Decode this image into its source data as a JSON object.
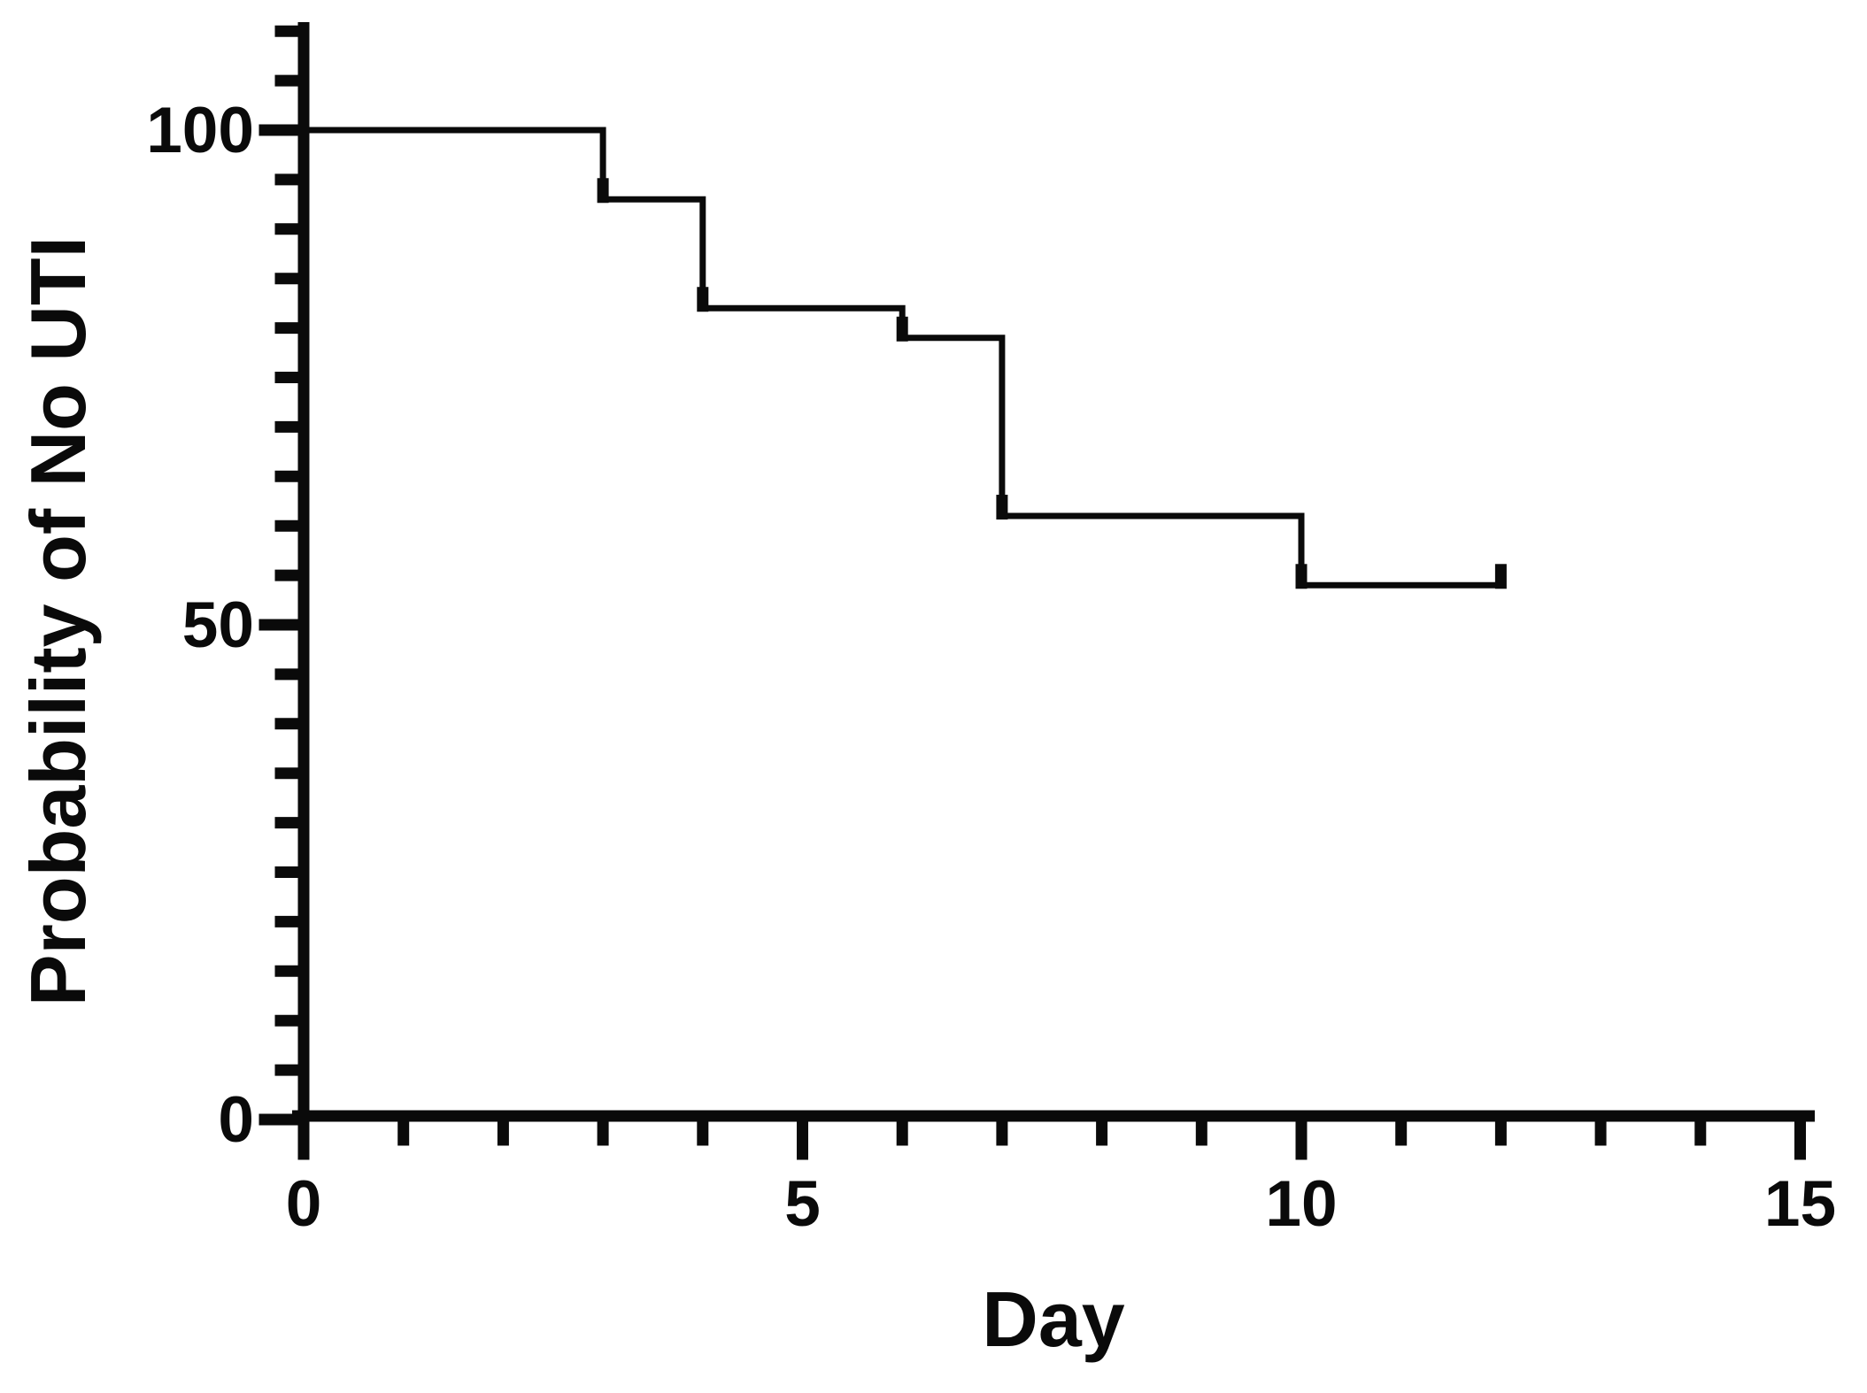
{
  "figure": {
    "background_color": "#ffffff",
    "line_color": "#0a0a0a",
    "x_axis_title": "Day",
    "y_axis_title": "Probability of No UTI"
  },
  "chart_data": {
    "type": "line",
    "subtype": "kaplan-meier-step",
    "title": "",
    "xlabel": "Day",
    "ylabel": "Probability of No UTI",
    "xlim": [
      0,
      15
    ],
    "ylim": [
      0,
      110
    ],
    "grid": false,
    "legend": "none",
    "x_major_ticks": [
      0,
      5,
      10,
      15
    ],
    "x_major_tick_labels": [
      "0",
      "5",
      "10",
      "15"
    ],
    "x_minor_ticks": [
      1,
      2,
      3,
      4,
      6,
      7,
      8,
      9,
      11,
      12,
      13,
      14
    ],
    "y_major_ticks": [
      0,
      50,
      100
    ],
    "y_major_tick_labels": [
      "0",
      "50",
      "100"
    ],
    "y_minor_ticks": [
      5,
      10,
      15,
      20,
      25,
      30,
      35,
      40,
      45,
      55,
      60,
      65,
      70,
      75,
      80,
      85,
      90,
      95,
      105,
      110
    ],
    "series": [
      {
        "name": "Probability of No UTI",
        "step_points": [
          [
            0,
            100
          ],
          [
            3,
            100
          ],
          [
            3,
            93
          ],
          [
            4,
            93
          ],
          [
            4,
            82
          ],
          [
            6,
            82
          ],
          [
            6,
            79
          ],
          [
            7,
            79
          ],
          [
            7,
            61
          ],
          [
            10,
            61
          ],
          [
            10,
            54
          ],
          [
            12,
            54
          ]
        ],
        "event_drop_days": [
          3,
          4,
          6,
          7,
          10
        ],
        "censor_marks": [
          [
            3,
            93
          ],
          [
            4,
            82
          ],
          [
            6,
            79
          ],
          [
            7,
            61
          ],
          [
            10,
            54
          ],
          [
            12,
            54
          ]
        ],
        "final_value": 54,
        "end_day": 12
      }
    ]
  }
}
